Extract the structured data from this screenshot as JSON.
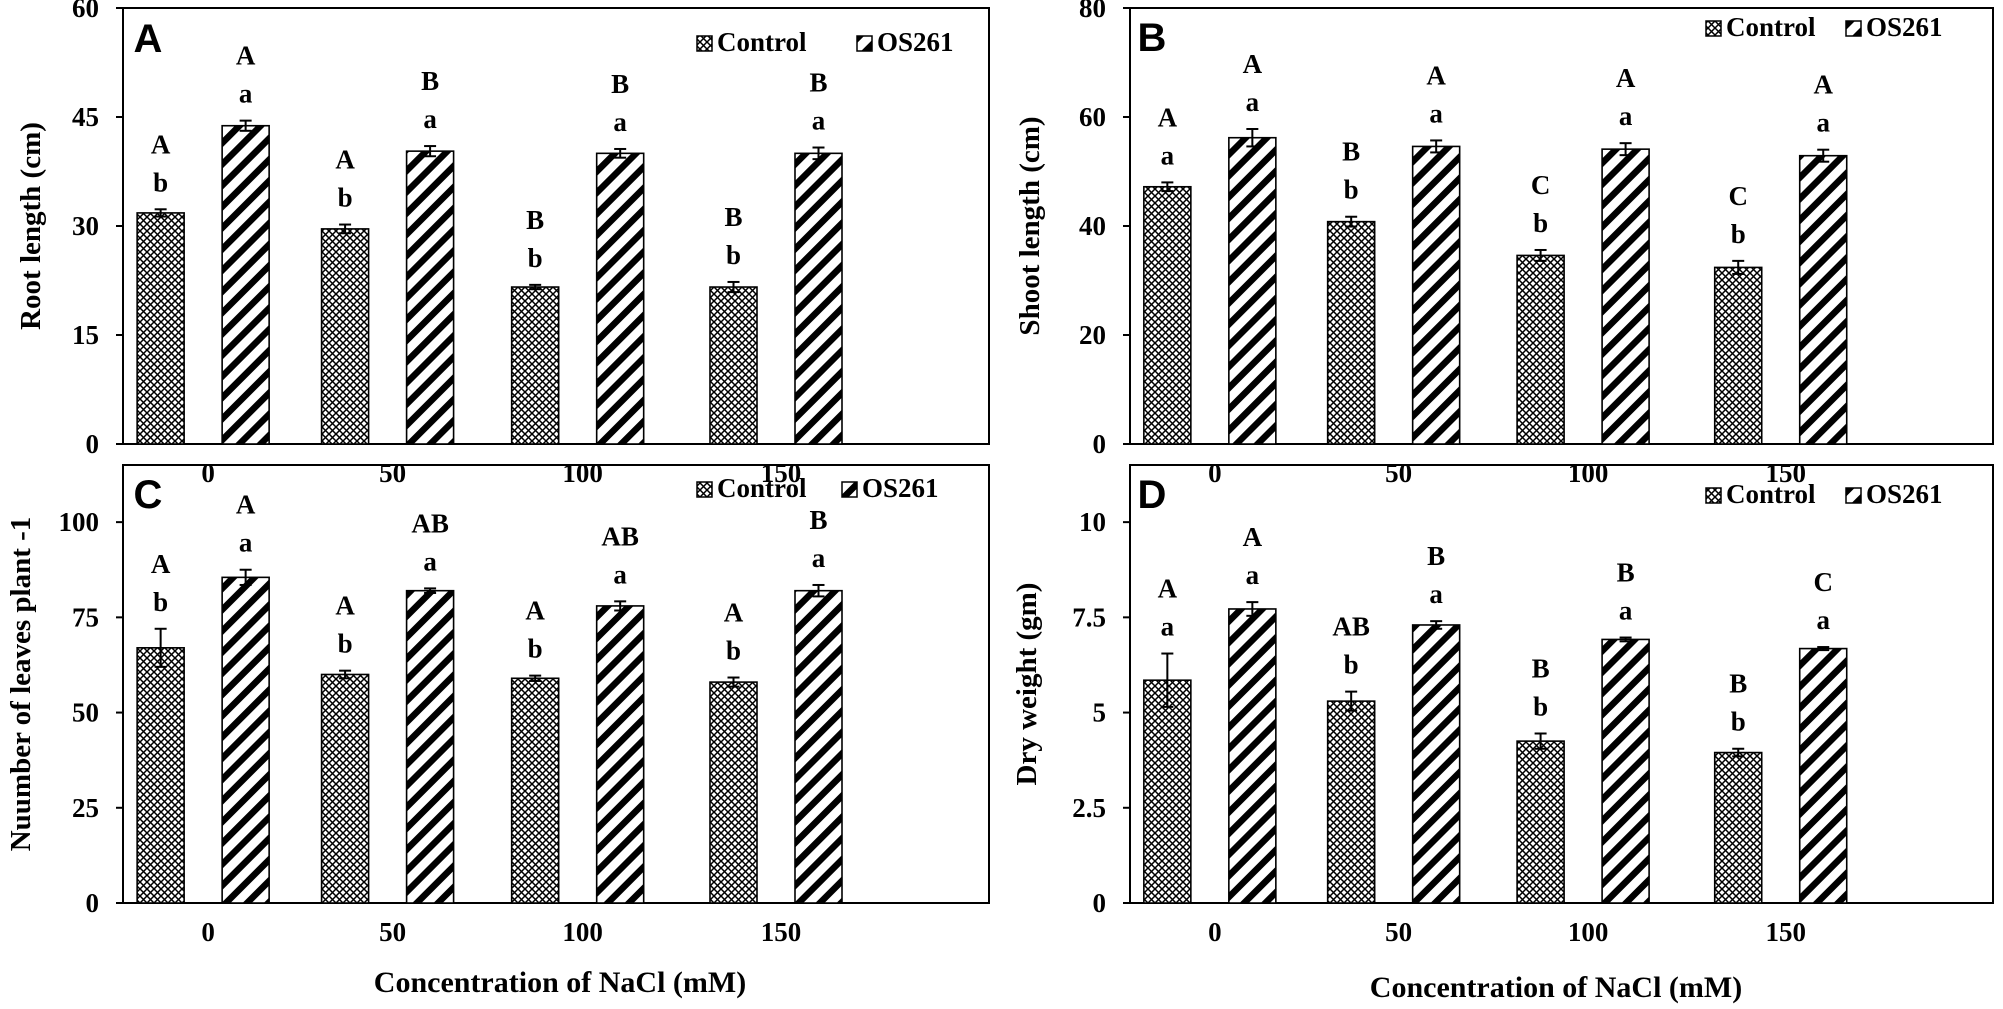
{
  "colors": {
    "bar_stroke": "#000000",
    "background": "#ffffff",
    "hatch": "#000000"
  },
  "chart_data": [
    {
      "type": "bar",
      "panel": "A",
      "categories": [
        "0",
        "50",
        "100",
        "150"
      ],
      "ylabel": "Root length (cm)",
      "xlabel": "",
      "ylim": [
        0,
        60
      ],
      "yticks": [
        "0",
        "15",
        "30",
        "45",
        "60"
      ],
      "legend_position": "top-right",
      "series": [
        {
          "name": "Control",
          "pattern": "crosshatch",
          "values": [
            31.8,
            29.6,
            21.6,
            21.6
          ],
          "errors": [
            0.5,
            0.6,
            0.3,
            0.7
          ],
          "lower": [
            "b",
            "b",
            "b",
            "b"
          ],
          "upper": [
            "A",
            "A",
            "B",
            "B"
          ]
        },
        {
          "name": "OS261",
          "pattern": "diagonal",
          "values": [
            43.8,
            40.3,
            40.0,
            40.0
          ],
          "errors": [
            0.7,
            0.7,
            0.6,
            0.8
          ],
          "lower": [
            "a",
            "a",
            "a",
            "a"
          ],
          "upper": [
            "A",
            "B",
            "B",
            "B"
          ]
        }
      ]
    },
    {
      "type": "bar",
      "panel": "B",
      "categories": [
        "0",
        "50",
        "100",
        "150"
      ],
      "ylabel": "Shoot length (cm)",
      "xlabel": "",
      "ylim": [
        0,
        80
      ],
      "yticks": [
        "0",
        "20",
        "40",
        "60",
        "80"
      ],
      "legend_position": "top-right",
      "series": [
        {
          "name": "Control",
          "pattern": "crosshatch",
          "values": [
            47.2,
            40.8,
            34.6,
            32.4
          ],
          "errors": [
            0.8,
            0.9,
            1.0,
            1.2
          ],
          "lower": [
            "a",
            "b",
            "b",
            "b"
          ],
          "upper": [
            "A",
            "B",
            "C",
            "C"
          ]
        },
        {
          "name": "OS261",
          "pattern": "diagonal",
          "values": [
            56.2,
            54.6,
            54.1,
            52.9
          ],
          "errors": [
            1.6,
            1.1,
            1.1,
            1.1
          ],
          "lower": [
            "a",
            "a",
            "a",
            "a"
          ],
          "upper": [
            "A",
            "A",
            "A",
            "A"
          ]
        }
      ]
    },
    {
      "type": "bar",
      "panel": "C",
      "categories": [
        "0",
        "50",
        "100",
        "150"
      ],
      "ylabel": "Nuumber  of leaves plant -1",
      "xlabel": "Concentration  of NaCl (mM)",
      "ylim": [
        0,
        115
      ],
      "yticks": [
        "0",
        "25",
        "50",
        "75",
        "100"
      ],
      "legend_position": "top-right",
      "series": [
        {
          "name": "Control",
          "pattern": "crosshatch",
          "values": [
            67,
            60,
            59,
            58
          ],
          "errors": [
            5,
            1,
            0.7,
            1.2
          ],
          "lower": [
            "b",
            "b",
            "b",
            "b"
          ],
          "upper": [
            "A",
            "A",
            "A",
            "A"
          ]
        },
        {
          "name": "OS261",
          "pattern": "diagonal",
          "values": [
            85.5,
            82,
            78,
            82
          ],
          "errors": [
            2,
            0.6,
            1.2,
            1.5
          ],
          "lower": [
            "a",
            "a",
            "a",
            "a"
          ],
          "upper": [
            "A",
            "AB",
            "AB",
            "B"
          ]
        }
      ]
    },
    {
      "type": "bar",
      "panel": "D",
      "categories": [
        "0",
        "50",
        "100",
        "150"
      ],
      "ylabel": "Dry weight (gm)",
      "xlabel": "Concentration  of NaCl (mM)",
      "ylim": [
        0,
        11.5
      ],
      "yticks": [
        "0",
        "2.5",
        "5",
        "7.5",
        "10"
      ],
      "legend_position": "top-right",
      "series": [
        {
          "name": "Control",
          "pattern": "crosshatch",
          "values": [
            5.85,
            5.3,
            4.25,
            3.95
          ],
          "errors": [
            0.7,
            0.25,
            0.2,
            0.1
          ],
          "lower": [
            "a",
            "b",
            "b",
            "b"
          ],
          "upper": [
            "A",
            "AB",
            "B",
            "B"
          ]
        },
        {
          "name": "OS261",
          "pattern": "diagonal",
          "values": [
            7.72,
            7.3,
            6.92,
            6.68
          ],
          "errors": [
            0.18,
            0.1,
            0.05,
            0.04
          ],
          "lower": [
            "a",
            "a",
            "a",
            "a"
          ],
          "upper": [
            "A",
            "B",
            "B",
            "C"
          ]
        }
      ]
    }
  ]
}
